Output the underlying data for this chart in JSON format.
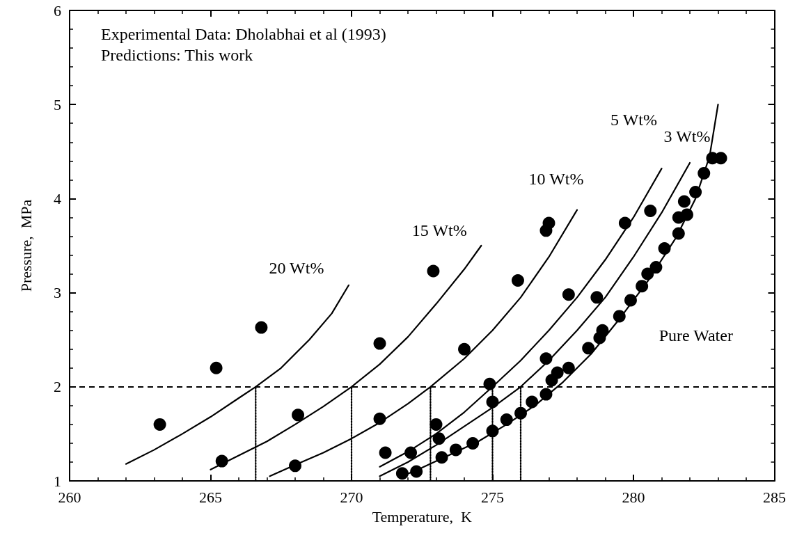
{
  "chart_data": {
    "type": "scatter",
    "xlabel": "Temperature,  K",
    "ylabel": "Pressure,  MPa",
    "xlim": [
      260,
      285
    ],
    "xticks": [
      260,
      265,
      270,
      275,
      280,
      285
    ],
    "ylim": [
      1,
      6
    ],
    "yticks": [
      1,
      2,
      3,
      4,
      5,
      6
    ],
    "grid": false,
    "ref_lines": [
      {
        "axis": "y",
        "value": 2,
        "line_style": "dashed",
        "color": "#000000"
      }
    ],
    "annotations": [
      "Experimental Data: Dholabhai et al (1993)",
      "Predictions: This work"
    ],
    "series": [
      {
        "type": "line",
        "name": "20 Wt%",
        "color": "#000000",
        "marker": "none",
        "line_style": "solid",
        "x": [
          262,
          263,
          264,
          265,
          266,
          266.6,
          267.5,
          268.5,
          269.3,
          269.9
        ],
        "values": [
          1.18,
          1.33,
          1.5,
          1.68,
          1.88,
          2.0,
          2.2,
          2.5,
          2.78,
          3.08
        ]
      },
      {
        "type": "line",
        "name": "15 Wt%",
        "color": "#000000",
        "marker": "none",
        "line_style": "solid",
        "x": [
          265,
          266,
          267,
          268,
          269,
          270,
          271,
          272,
          273,
          274,
          274.6
        ],
        "values": [
          1.12,
          1.27,
          1.42,
          1.6,
          1.79,
          2.0,
          2.24,
          2.53,
          2.88,
          3.25,
          3.5
        ]
      },
      {
        "type": "line",
        "name": "10 Wt%",
        "color": "#000000",
        "marker": "none",
        "line_style": "solid",
        "x": [
          267.1,
          268,
          269,
          270,
          271,
          272,
          272.8,
          274,
          275,
          276,
          277,
          278
        ],
        "values": [
          1.05,
          1.17,
          1.3,
          1.45,
          1.62,
          1.82,
          2.0,
          2.3,
          2.6,
          2.95,
          3.38,
          3.88
        ]
      },
      {
        "type": "line",
        "name": "5 Wt%",
        "color": "#000000",
        "marker": "none",
        "line_style": "solid",
        "x": [
          271,
          272,
          273,
          274,
          275,
          276,
          277,
          278,
          279,
          280,
          281
        ],
        "values": [
          1.15,
          1.31,
          1.5,
          1.73,
          2.0,
          2.28,
          2.6,
          2.95,
          3.35,
          3.8,
          4.32
        ]
      },
      {
        "type": "line",
        "name": "3 Wt%",
        "color": "#000000",
        "marker": "none",
        "line_style": "solid",
        "x": [
          271,
          272,
          273,
          274,
          275,
          276,
          277,
          278,
          279,
          280,
          281,
          282
        ],
        "values": [
          1.05,
          1.2,
          1.38,
          1.58,
          1.78,
          2.0,
          2.28,
          2.6,
          2.95,
          3.38,
          3.85,
          4.38
        ]
      },
      {
        "type": "line",
        "name": "Pure Water",
        "color": "#000000",
        "marker": "none",
        "line_style": "solid",
        "x": [
          271.8,
          272.5,
          273.5,
          274.5,
          275.5,
          276.5,
          277.5,
          278.5,
          279.5,
          280.5,
          281.5,
          282.2,
          282.7,
          283.0
        ],
        "values": [
          1.05,
          1.14,
          1.28,
          1.42,
          1.6,
          1.8,
          2.05,
          2.35,
          2.72,
          3.12,
          3.58,
          4.0,
          4.45,
          5.0
        ]
      },
      {
        "type": "line",
        "color": "#000000",
        "marker": "none",
        "line_style": "dotted",
        "x": [
          266.6,
          266.6
        ],
        "values": [
          1,
          2
        ]
      },
      {
        "type": "line",
        "color": "#000000",
        "marker": "none",
        "line_style": "dotted",
        "x": [
          270,
          270
        ],
        "values": [
          1,
          2
        ]
      },
      {
        "type": "line",
        "color": "#000000",
        "marker": "none",
        "line_style": "dotted",
        "x": [
          272.8,
          272.8
        ],
        "values": [
          1,
          2
        ]
      },
      {
        "type": "line",
        "color": "#000000",
        "marker": "none",
        "line_style": "dotted",
        "x": [
          275,
          275
        ],
        "values": [
          1,
          2
        ]
      },
      {
        "type": "line",
        "color": "#000000",
        "marker": "none",
        "line_style": "dotted",
        "x": [
          276,
          276
        ],
        "values": [
          1,
          2
        ]
      },
      {
        "color": "#000000",
        "marker": "circle",
        "x": [
          263.2,
          265.2,
          266.8,
          265.4,
          268.1,
          268.0,
          271.0,
          271.0,
          271.2,
          272.1,
          272.9,
          273.0,
          273.1,
          274.0,
          274.9,
          275.0,
          275.9,
          276.9,
          277.0,
          276.9,
          277.7,
          279.7,
          280.6,
          278.7,
          282.8,
          283.1,
          282.5,
          282.2,
          281.8,
          281.9,
          281.6,
          281.6,
          281.1,
          280.8,
          280.5,
          280.3,
          279.9,
          279.5,
          278.9,
          278.8,
          278.4,
          277.7,
          277.3,
          277.1,
          276.9,
          276.4,
          276.0,
          275.5,
          275.0,
          274.3,
          273.7,
          273.2,
          272.3,
          271.8
        ],
        "values": [
          1.6,
          2.2,
          2.63,
          1.21,
          1.7,
          1.16,
          1.66,
          2.46,
          1.3,
          1.3,
          3.23,
          1.6,
          1.45,
          2.4,
          2.03,
          1.84,
          3.13,
          3.66,
          3.74,
          2.3,
          2.98,
          3.74,
          3.87,
          2.95,
          4.43,
          4.43,
          4.27,
          4.07,
          3.97,
          3.83,
          3.8,
          3.63,
          3.47,
          3.27,
          3.2,
          3.07,
          2.92,
          2.75,
          2.6,
          2.52,
          2.41,
          2.2,
          2.15,
          2.07,
          1.92,
          1.84,
          1.72,
          1.65,
          1.53,
          1.4,
          1.33,
          1.25,
          1.1,
          1.08
        ]
      }
    ]
  }
}
